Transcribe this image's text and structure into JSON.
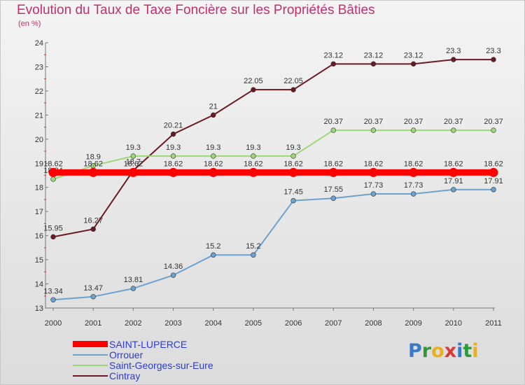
{
  "title": "Evolution du Taux de Taxe Foncière sur les Propriétés Bâties",
  "subtitle": "(en %)",
  "logo": {
    "text": "Proxiti",
    "letters": [
      {
        "ch": "P",
        "color": "#3a78c8"
      },
      {
        "ch": "r",
        "color": "#2f9a3a"
      },
      {
        "ch": "o",
        "color": "#e8b020"
      },
      {
        "ch": "x",
        "color": "#d83a3a"
      },
      {
        "ch": "i",
        "color": "#3a78c8"
      },
      {
        "ch": "t",
        "color": "#2f9a3a"
      },
      {
        "ch": "i",
        "color": "#e8b020"
      }
    ]
  },
  "chart_data": {
    "type": "line",
    "title": "Evolution du Taux de Taxe Foncière sur les Propriétés Bâties",
    "ylabel": "(en %)",
    "xlabel": "",
    "categories": [
      "2000",
      "2001",
      "2002",
      "2003",
      "2004",
      "2005",
      "2006",
      "2007",
      "2008",
      "2009",
      "2010",
      "2011"
    ],
    "ylim": [
      13,
      24
    ],
    "yticks": [
      "13",
      "14",
      "15",
      "16",
      "17",
      "18",
      "19",
      "20",
      "21",
      "22",
      "23",
      "24"
    ],
    "grid": false,
    "legend_position": "bottom-left",
    "series": [
      {
        "name": "Cintray",
        "color": "#6b1a22",
        "values": [
          15.95,
          16.27,
          18.7,
          20.21,
          21,
          22.05,
          22.05,
          23.12,
          23.12,
          23.12,
          23.3,
          23.3
        ],
        "labels": [
          "15.95",
          "16.27",
          "18.7",
          "20.21",
          "21",
          "22.05",
          "22.05",
          "23.12",
          "23.12",
          "23.12",
          "23.3",
          "23.3"
        ]
      },
      {
        "name": "Saint-Georges-sur-Eure",
        "color": "#9ed67a",
        "values": [
          18.34,
          18.9,
          19.3,
          19.3,
          19.3,
          19.3,
          19.3,
          20.37,
          20.37,
          20.37,
          20.37,
          20.37
        ],
        "labels": [
          "18.34",
          "18.9",
          "19.3",
          "19.3",
          "19.3",
          "19.3",
          "19.3",
          "20.37",
          "20.37",
          "20.37",
          "20.37",
          "20.37"
        ]
      },
      {
        "name": "Orrouer",
        "color": "#6ca2cf",
        "values": [
          13.34,
          13.47,
          13.81,
          14.36,
          15.2,
          15.2,
          17.45,
          17.55,
          17.73,
          17.73,
          17.91,
          17.91
        ],
        "labels": [
          "13.34",
          "13.47",
          "13.81",
          "14.36",
          "15.2",
          "15.2",
          "17.45",
          "17.55",
          "17.73",
          "17.73",
          "17.91",
          "17.91"
        ]
      },
      {
        "name": "SAINT-LUPERCE",
        "color": "#ff0000",
        "values": [
          18.62,
          18.62,
          18.62,
          18.62,
          18.62,
          18.62,
          18.62,
          18.62,
          18.62,
          18.62,
          18.62,
          18.62
        ],
        "labels": [
          "18.62",
          "18.62",
          "18.62",
          "18.62",
          "18.62",
          "18.62",
          "18.62",
          "18.62",
          "18.62",
          "18.62",
          "18.62",
          "18.62"
        ]
      }
    ],
    "legend": [
      {
        "name": "SAINT-LUPERCE",
        "color": "#ff0000"
      },
      {
        "name": "Orrouer",
        "color": "#6ca2cf"
      },
      {
        "name": "Saint-Georges-sur-Eure",
        "color": "#9ed67a"
      },
      {
        "name": "Cintray",
        "color": "#6b1a22"
      }
    ]
  }
}
